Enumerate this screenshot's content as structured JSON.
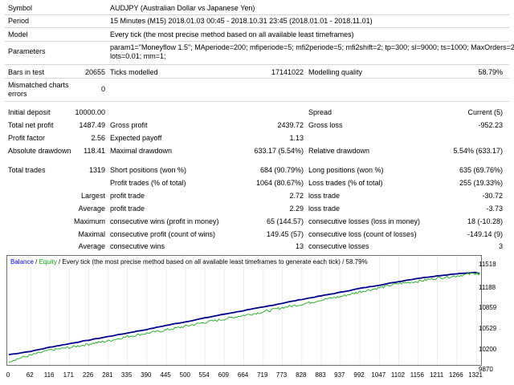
{
  "report": {
    "symbol_label": "Symbol",
    "symbol": "AUDJPY (Australian Dollar vs Japanese Yen)",
    "period_label": "Period",
    "period": "15 Minutes (M15) 2018.01.03 00:45 - 2018.10.31 23:45 (2018.01.01 - 2018.11.01)",
    "model_label": "Model",
    "model": "Every tick (the most precise method based on all available least timeframes)",
    "parameters_label": "Parameters",
    "parameters_line1": "param1=\"Moneyflow 1.5\"; MAperiode=200; mfiperiode=5; mfi2periode=5; mfi2shift=2; tp=300; sl=9000; ts=1000; MaxOrders=20;",
    "parameters_line2": "lots=0.01; mm=1;",
    "bars_label": "Bars in test",
    "bars": "20655",
    "ticks_label": "Ticks modelled",
    "ticks": "17141022",
    "quality_label": "Modelling quality",
    "quality": "58.79%",
    "mismatch_label_1": "Mismatched charts",
    "mismatch_label_2": "errors",
    "mismatch": "0",
    "initial_deposit_label": "Initial deposit",
    "initial_deposit": "10000.00",
    "spread_label": "Spread",
    "spread": "Current (5)",
    "net_profit_label": "Total net profit",
    "net_profit": "1487.49",
    "gross_profit_label": "Gross profit",
    "gross_profit": "2439.72",
    "gross_loss_label": "Gross loss",
    "gross_loss": "-952.23",
    "profit_factor_label": "Profit factor",
    "profit_factor": "2.56",
    "expected_payoff_label": "Expected payoff",
    "expected_payoff": "1.13",
    "abs_dd_label": "Absolute drawdown",
    "abs_dd": "118.41",
    "max_dd_label": "Maximal drawdown",
    "max_dd": "633.17 (5.54%)",
    "rel_dd_label": "Relative drawdown",
    "rel_dd": "5.54% (633.17)",
    "total_trades_label": "Total trades",
    "total_trades": "1319",
    "short_label": "Short positions (won %)",
    "short": "684 (90.79%)",
    "long_label": "Long positions (won %)",
    "long": "635 (69.76%)",
    "profit_trades_label": "Profit trades (% of total)",
    "profit_trades": "1064 (80.67%)",
    "loss_trades_label": "Loss trades (% of total)",
    "loss_trades": "255 (19.33%)",
    "largest_label": "Largest",
    "largest_profit_label": "profit trade",
    "largest_profit": "2.72",
    "largest_loss_label": "loss trade",
    "largest_loss": "-30.72",
    "average_label": "Average",
    "average_profit_label": "profit trade",
    "average_profit": "2.29",
    "average_loss_label": "loss trade",
    "average_loss": "-3.73",
    "maximum_label": "Maximum",
    "max_cons_wins_label": "consecutive wins (profit in money)",
    "max_cons_wins": "65 (144.57)",
    "max_cons_losses_label": "consecutive losses (loss in money)",
    "max_cons_losses": "18 (-10.28)",
    "maximal_label": "Maximal",
    "maximal_cons_profit_label": "consecutive profit (count of wins)",
    "maximal_cons_profit": "149.45 (57)",
    "maximal_cons_loss_label": "consecutive loss (count of losses)",
    "maximal_cons_loss": "-149.14 (9)",
    "average2_label": "Average",
    "avg_cons_wins_label": "consecutive wins",
    "avg_cons_wins": "13",
    "avg_cons_losses_label": "consecutive losses",
    "avg_cons_losses": "3"
  },
  "chart_data": {
    "type": "line",
    "legend_balance": "Balance",
    "legend_sep": " / ",
    "legend_equity": "Equity",
    "legend_rest": " / Every tick (the most precise method based on all available least timeframes to generate each tick) / 58.79%",
    "colors": {
      "balance": "#00008b",
      "equity": "#22aa22",
      "legend_balance": "#0000ff",
      "legend_equity": "#00aa00"
    },
    "x_ticks": [
      "0",
      "62",
      "116",
      "171",
      "226",
      "281",
      "335",
      "390",
      "445",
      "500",
      "554",
      "609",
      "664",
      "719",
      "773",
      "828",
      "883",
      "937",
      "992",
      "1047",
      "1102",
      "1156",
      "1211",
      "1266",
      "1321"
    ],
    "y_ticks": [
      "11518",
      "11188",
      "10859",
      "10529",
      "10200",
      "9870"
    ],
    "xlim": [
      0,
      1330
    ],
    "ylim": [
      9870,
      11600
    ],
    "series": [
      {
        "name": "Balance",
        "x": [
          0,
          62,
          116,
          171,
          226,
          281,
          335,
          390,
          445,
          500,
          554,
          609,
          664,
          719,
          773,
          828,
          883,
          937,
          992,
          1047,
          1102,
          1156,
          1211,
          1266,
          1321,
          1330
        ],
        "values": [
          10000,
          10060,
          10135,
          10200,
          10265,
          10330,
          10395,
          10460,
          10535,
          10600,
          10670,
          10740,
          10805,
          10870,
          10940,
          11010,
          11075,
          11140,
          11210,
          11270,
          11335,
          11395,
          11440,
          11480,
          11500,
          11480
        ]
      },
      {
        "name": "Equity",
        "x": [
          0,
          62,
          116,
          171,
          226,
          281,
          335,
          390,
          445,
          500,
          554,
          609,
          664,
          719,
          773,
          828,
          883,
          937,
          992,
          1047,
          1102,
          1156,
          1211,
          1266,
          1321,
          1330
        ],
        "values": [
          9880,
          9990,
          10080,
          10130,
          10195,
          10250,
          10330,
          10390,
          10450,
          10520,
          10590,
          10650,
          10720,
          10780,
          10860,
          10920,
          11000,
          11060,
          11150,
          11220,
          11300,
          11340,
          11400,
          11440,
          11490,
          11470
        ]
      }
    ]
  }
}
